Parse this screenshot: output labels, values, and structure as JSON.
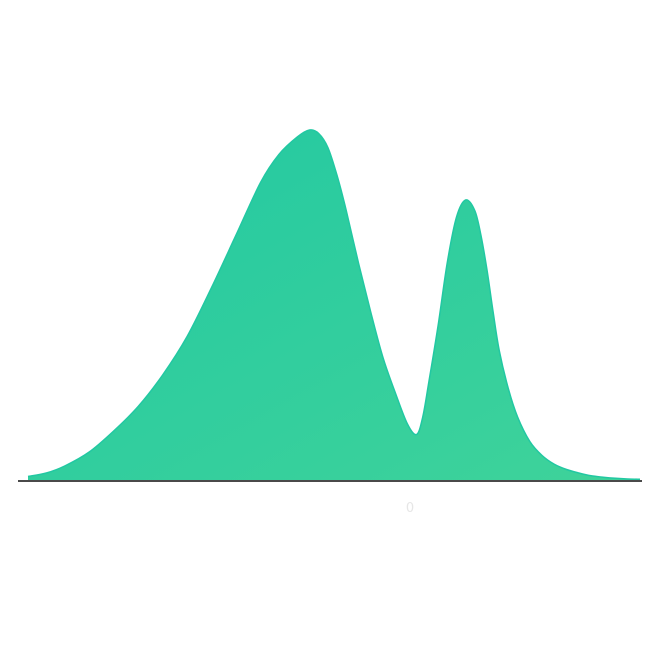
{
  "chart_data": {
    "type": "area",
    "title": "",
    "xlabel": "",
    "ylabel": "",
    "grid": false,
    "legend": "none",
    "fill_color": "#22c8a2",
    "fill_color_light": "#3fd39a",
    "axis_color": "#4a4a4a",
    "xlim": [
      0,
      100
    ],
    "ylim": [
      0,
      1
    ],
    "x_tick_labels": [
      "0"
    ],
    "series": [
      {
        "x": [
          0,
          3,
          6,
          10,
          14,
          18,
          22,
          26,
          30,
          34,
          38,
          41,
          44,
          46,
          47.5,
          49,
          50.5,
          52,
          54,
          56,
          58,
          60,
          62,
          63.5,
          64.5,
          65.5,
          67,
          68.5,
          70,
          71.5,
          73,
          74,
          75,
          76,
          77,
          78.5,
          80,
          82,
          84,
          86,
          88,
          90,
          92,
          94,
          96,
          98,
          100
        ],
        "y": [
          0.01,
          0.02,
          0.04,
          0.08,
          0.14,
          0.21,
          0.3,
          0.41,
          0.55,
          0.7,
          0.85,
          0.93,
          0.98,
          1.0,
          0.99,
          0.95,
          0.87,
          0.77,
          0.62,
          0.48,
          0.35,
          0.25,
          0.16,
          0.13,
          0.18,
          0.28,
          0.44,
          0.62,
          0.75,
          0.8,
          0.77,
          0.7,
          0.6,
          0.48,
          0.37,
          0.26,
          0.18,
          0.11,
          0.07,
          0.045,
          0.03,
          0.02,
          0.012,
          0.008,
          0.005,
          0.003,
          0.002
        ]
      }
    ]
  }
}
